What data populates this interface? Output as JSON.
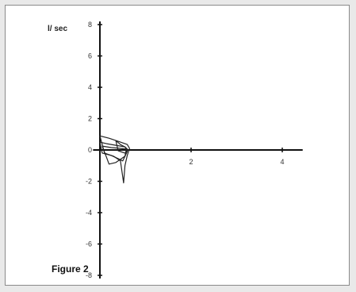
{
  "figure": {
    "caption": "Figure 2"
  },
  "chart_data": {
    "type": "line",
    "title": "",
    "xlabel": "",
    "ylabel": "l/ sec",
    "xlim": [
      -0.15,
      4.5
    ],
    "ylim": [
      -8,
      8
    ],
    "x_ticks": [
      2,
      4
    ],
    "y_ticks": [
      8,
      6,
      4,
      2,
      0,
      -2,
      -4,
      -6,
      -8
    ],
    "grid": false,
    "series": [
      {
        "points": [
          [
            0.0,
            0.9
          ],
          [
            0.2,
            0.75
          ],
          [
            0.4,
            0.55
          ],
          [
            0.6,
            0.35
          ],
          [
            0.65,
            0.1
          ],
          [
            0.6,
            -0.35
          ],
          [
            0.55,
            -1.0
          ],
          [
            0.52,
            -2.1
          ],
          [
            0.45,
            -0.7
          ],
          [
            0.3,
            -0.4
          ],
          [
            0.1,
            -0.2
          ],
          [
            0.0,
            0.9
          ]
        ]
      },
      {
        "points": [
          [
            0.0,
            0.5
          ],
          [
            0.15,
            0.4
          ],
          [
            0.35,
            0.3
          ],
          [
            0.55,
            0.2
          ],
          [
            0.6,
            -0.1
          ],
          [
            0.5,
            -0.7
          ],
          [
            0.4,
            -0.55
          ],
          [
            0.25,
            -0.35
          ],
          [
            0.05,
            -0.2
          ],
          [
            0.0,
            0.5
          ]
        ]
      },
      {
        "points": [
          [
            0.05,
            0.25
          ],
          [
            0.25,
            0.15
          ],
          [
            0.45,
            0.1
          ],
          [
            0.58,
            0.05
          ],
          [
            0.55,
            -0.4
          ],
          [
            0.35,
            -0.8
          ],
          [
            0.2,
            -0.9
          ],
          [
            0.15,
            -0.5
          ],
          [
            0.05,
            0.25
          ]
        ]
      },
      {
        "points": [
          [
            0.35,
            0.6
          ],
          [
            0.45,
            0.35
          ],
          [
            0.55,
            0.2
          ],
          [
            0.62,
            0.0
          ],
          [
            0.55,
            -0.2
          ],
          [
            0.4,
            -0.05
          ],
          [
            0.35,
            0.6
          ]
        ]
      }
    ]
  }
}
